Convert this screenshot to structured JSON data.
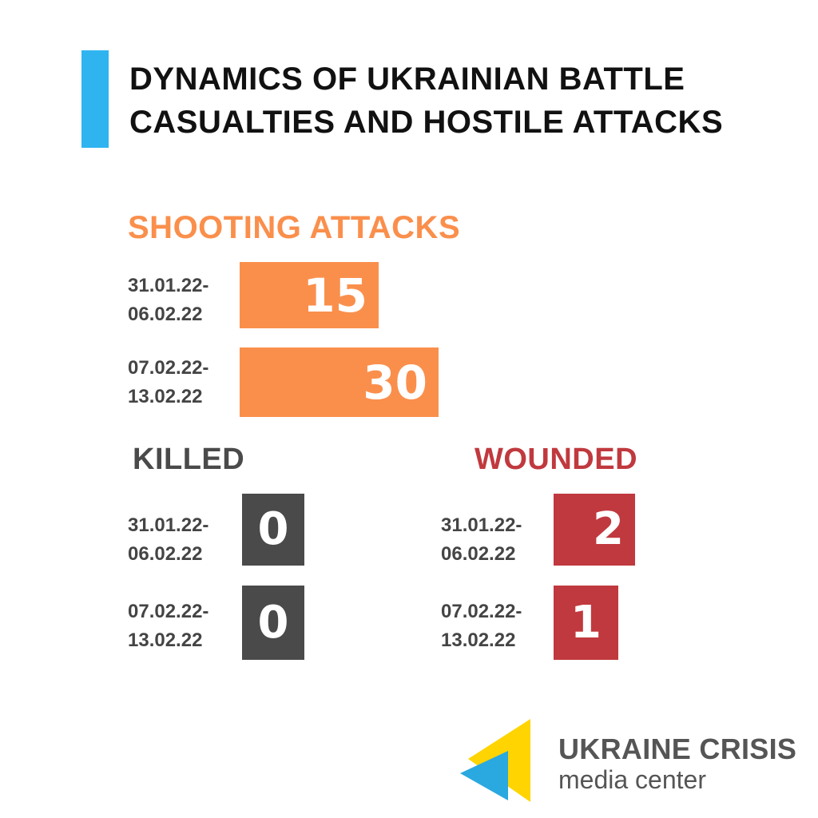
{
  "title": {
    "line1": "DYNAMICS OF UKRAINIAN BATTLE",
    "line2": "CASUALTIES AND HOSTILE ATTACKS"
  },
  "colors": {
    "accent": "#2fb4f0",
    "shooting": "#fa8f4c",
    "killed": "#4a4a4a",
    "wounded": "#c0393e",
    "logo_yellow": "#ffd400",
    "logo_blue": "#2aa8e0"
  },
  "logo": {
    "line1": "UKRAINE CRISIS",
    "line2": "media center"
  },
  "chart_data": [
    {
      "type": "bar",
      "title": "SHOOTING  ATTACKS",
      "categories": [
        {
          "line1": "31.01.22-",
          "line2": "06.02.22"
        },
        {
          "line1": "07.02.22-",
          "line2": "13.02.22"
        }
      ],
      "values": [
        15,
        30
      ],
      "orientation": "horizontal"
    },
    {
      "type": "bar",
      "title": "KILLED",
      "categories": [
        {
          "line1": "31.01.22-",
          "line2": "06.02.22"
        },
        {
          "line1": "07.02.22-",
          "line2": "13.02.22"
        }
      ],
      "values": [
        0,
        0
      ],
      "orientation": "horizontal"
    },
    {
      "type": "bar",
      "title": "WOUNDED",
      "categories": [
        {
          "line1": "31.01.22-",
          "line2": "06.02.22"
        },
        {
          "line1": "07.02.22-",
          "line2": "13.02.22"
        }
      ],
      "values": [
        2,
        1
      ],
      "orientation": "horizontal"
    }
  ]
}
